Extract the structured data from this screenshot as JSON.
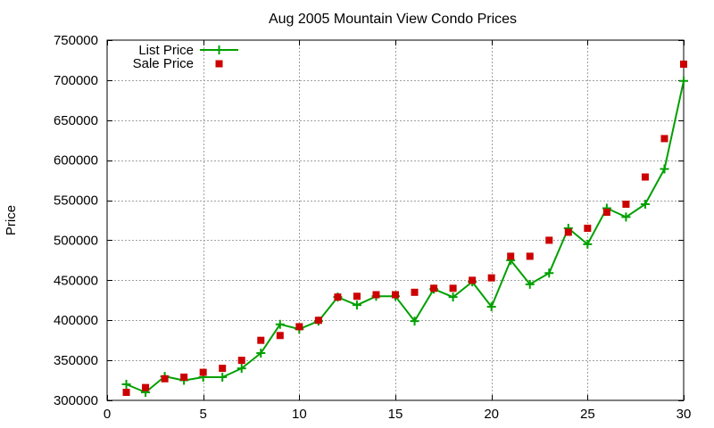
{
  "chart_data": {
    "type": "line",
    "title": "Aug 2005 Mountain View Condo Prices",
    "xlabel": "",
    "ylabel": "Price",
    "xlim": [
      0,
      30
    ],
    "ylim": [
      300000,
      750000
    ],
    "xticks": [
      0,
      5,
      10,
      15,
      20,
      25,
      30
    ],
    "yticks": [
      300000,
      350000,
      400000,
      450000,
      500000,
      550000,
      600000,
      650000,
      700000,
      750000
    ],
    "grid": true,
    "legend_position": "top-left",
    "series": [
      {
        "name": "List Price",
        "style": "line-with-plus-markers",
        "color": "#00a000",
        "x": [
          1,
          2,
          3,
          4,
          5,
          6,
          7,
          8,
          9,
          10,
          11,
          12,
          13,
          14,
          15,
          16,
          17,
          18,
          19,
          20,
          21,
          22,
          23,
          24,
          25,
          26,
          27,
          28,
          29,
          30
        ],
        "values": [
          320000,
          310000,
          330000,
          325000,
          329000,
          329000,
          340000,
          359000,
          395000,
          389000,
          399000,
          429000,
          419000,
          430000,
          430000,
          399000,
          439000,
          429000,
          448000,
          417000,
          475000,
          445000,
          459000,
          515000,
          495000,
          540000,
          529000,
          545000,
          589000,
          699000
        ]
      },
      {
        "name": "Sale Price",
        "style": "square-markers",
        "color": "#cc0000",
        "x": [
          1,
          2,
          3,
          4,
          5,
          6,
          7,
          8,
          9,
          10,
          11,
          12,
          13,
          14,
          15,
          16,
          17,
          18,
          19,
          20,
          21,
          22,
          23,
          24,
          25,
          26,
          27,
          28,
          29,
          30
        ],
        "values": [
          310000,
          316000,
          327000,
          329000,
          335000,
          340000,
          350000,
          375000,
          381000,
          392000,
          400000,
          429000,
          430000,
          432000,
          432000,
          435000,
          440000,
          440000,
          450000,
          453000,
          480000,
          480000,
          500000,
          510000,
          515000,
          535000,
          545000,
          579000,
          627000,
          720000
        ]
      }
    ]
  }
}
